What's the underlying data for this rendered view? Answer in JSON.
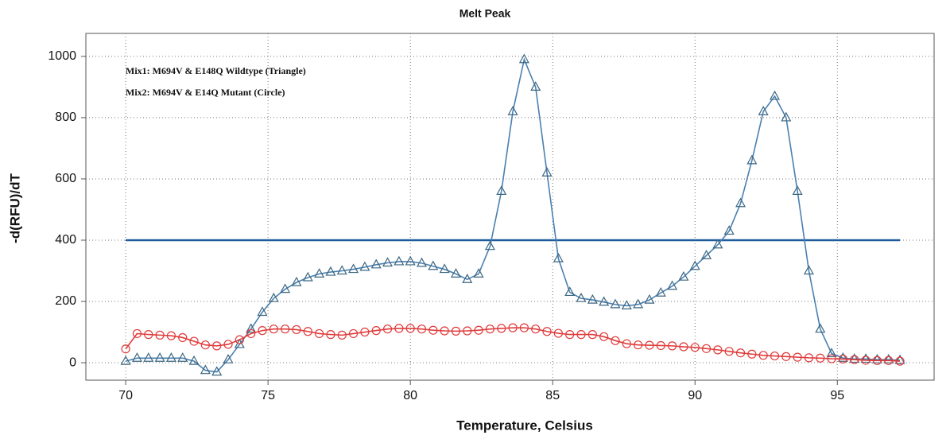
{
  "chart_data": {
    "type": "line",
    "title": "Melt Peak",
    "x_label": "Temperature, Celsius",
    "y_label": "-d(RFU)/dT",
    "x": [
      70.0,
      70.4,
      70.8,
      71.2,
      71.6,
      72.0,
      72.4,
      72.8,
      73.2,
      73.6,
      74.0,
      74.4,
      74.8,
      75.2,
      75.6,
      76.0,
      76.4,
      76.8,
      77.2,
      77.6,
      78.0,
      78.4,
      78.8,
      79.2,
      79.6,
      80.0,
      80.4,
      80.8,
      81.2,
      81.6,
      82.0,
      82.4,
      82.8,
      83.2,
      83.6,
      84.0,
      84.4,
      84.8,
      85.2,
      85.6,
      86.0,
      86.4,
      86.8,
      87.2,
      87.6,
      88.0,
      88.4,
      88.8,
      89.2,
      89.6,
      90.0,
      90.4,
      90.8,
      91.2,
      91.6,
      92.0,
      92.4,
      92.8,
      93.2,
      93.6,
      94.0,
      94.4,
      94.8,
      95.2,
      95.6,
      96.0,
      96.4,
      96.8,
      97.2
    ],
    "series": [
      {
        "name": "Mix1: M694V & E148Q Wildtype (Triangle)",
        "color": "#4a80b0",
        "marker": "triangle",
        "marker_color": "#3b6680",
        "legend_color": "#4d55b8",
        "values": [
          5,
          15,
          15,
          15,
          15,
          15,
          5,
          -25,
          -30,
          10,
          60,
          110,
          165,
          210,
          240,
          262,
          278,
          290,
          296,
          300,
          305,
          312,
          320,
          326,
          330,
          330,
          325,
          315,
          305,
          290,
          272,
          290,
          380,
          560,
          820,
          990,
          900,
          620,
          340,
          230,
          210,
          205,
          198,
          190,
          186,
          190,
          205,
          228,
          250,
          280,
          315,
          350,
          385,
          430,
          520,
          660,
          820,
          870,
          800,
          560,
          300,
          110,
          30,
          15,
          12,
          12,
          10,
          10,
          8
        ]
      },
      {
        "name": "Mix2: M694V & E14Q Mutant (Circle)",
        "color": "#e03a3a",
        "marker": "circle",
        "marker_color": "#e03a3a",
        "legend_color": "#d82020",
        "values": [
          45,
          95,
          92,
          90,
          88,
          82,
          70,
          58,
          55,
          60,
          75,
          95,
          105,
          110,
          110,
          108,
          102,
          95,
          92,
          90,
          95,
          100,
          105,
          110,
          112,
          112,
          110,
          106,
          104,
          103,
          104,
          106,
          110,
          112,
          114,
          114,
          110,
          102,
          96,
          92,
          92,
          92,
          85,
          72,
          62,
          58,
          57,
          56,
          55,
          52,
          50,
          46,
          42,
          37,
          32,
          28,
          24,
          22,
          20,
          18,
          16,
          15,
          13,
          12,
          10,
          8,
          7,
          7,
          5
        ]
      }
    ],
    "threshold": 400,
    "threshold_color": "#1f5a9a",
    "xlim": [
      68.6,
      98.4
    ],
    "ylim": [
      -57,
      1075
    ],
    "xticks": [
      70,
      75,
      80,
      85,
      90,
      95
    ],
    "yticks": [
      0,
      200,
      400,
      600,
      800,
      1000
    ],
    "grid": true
  }
}
